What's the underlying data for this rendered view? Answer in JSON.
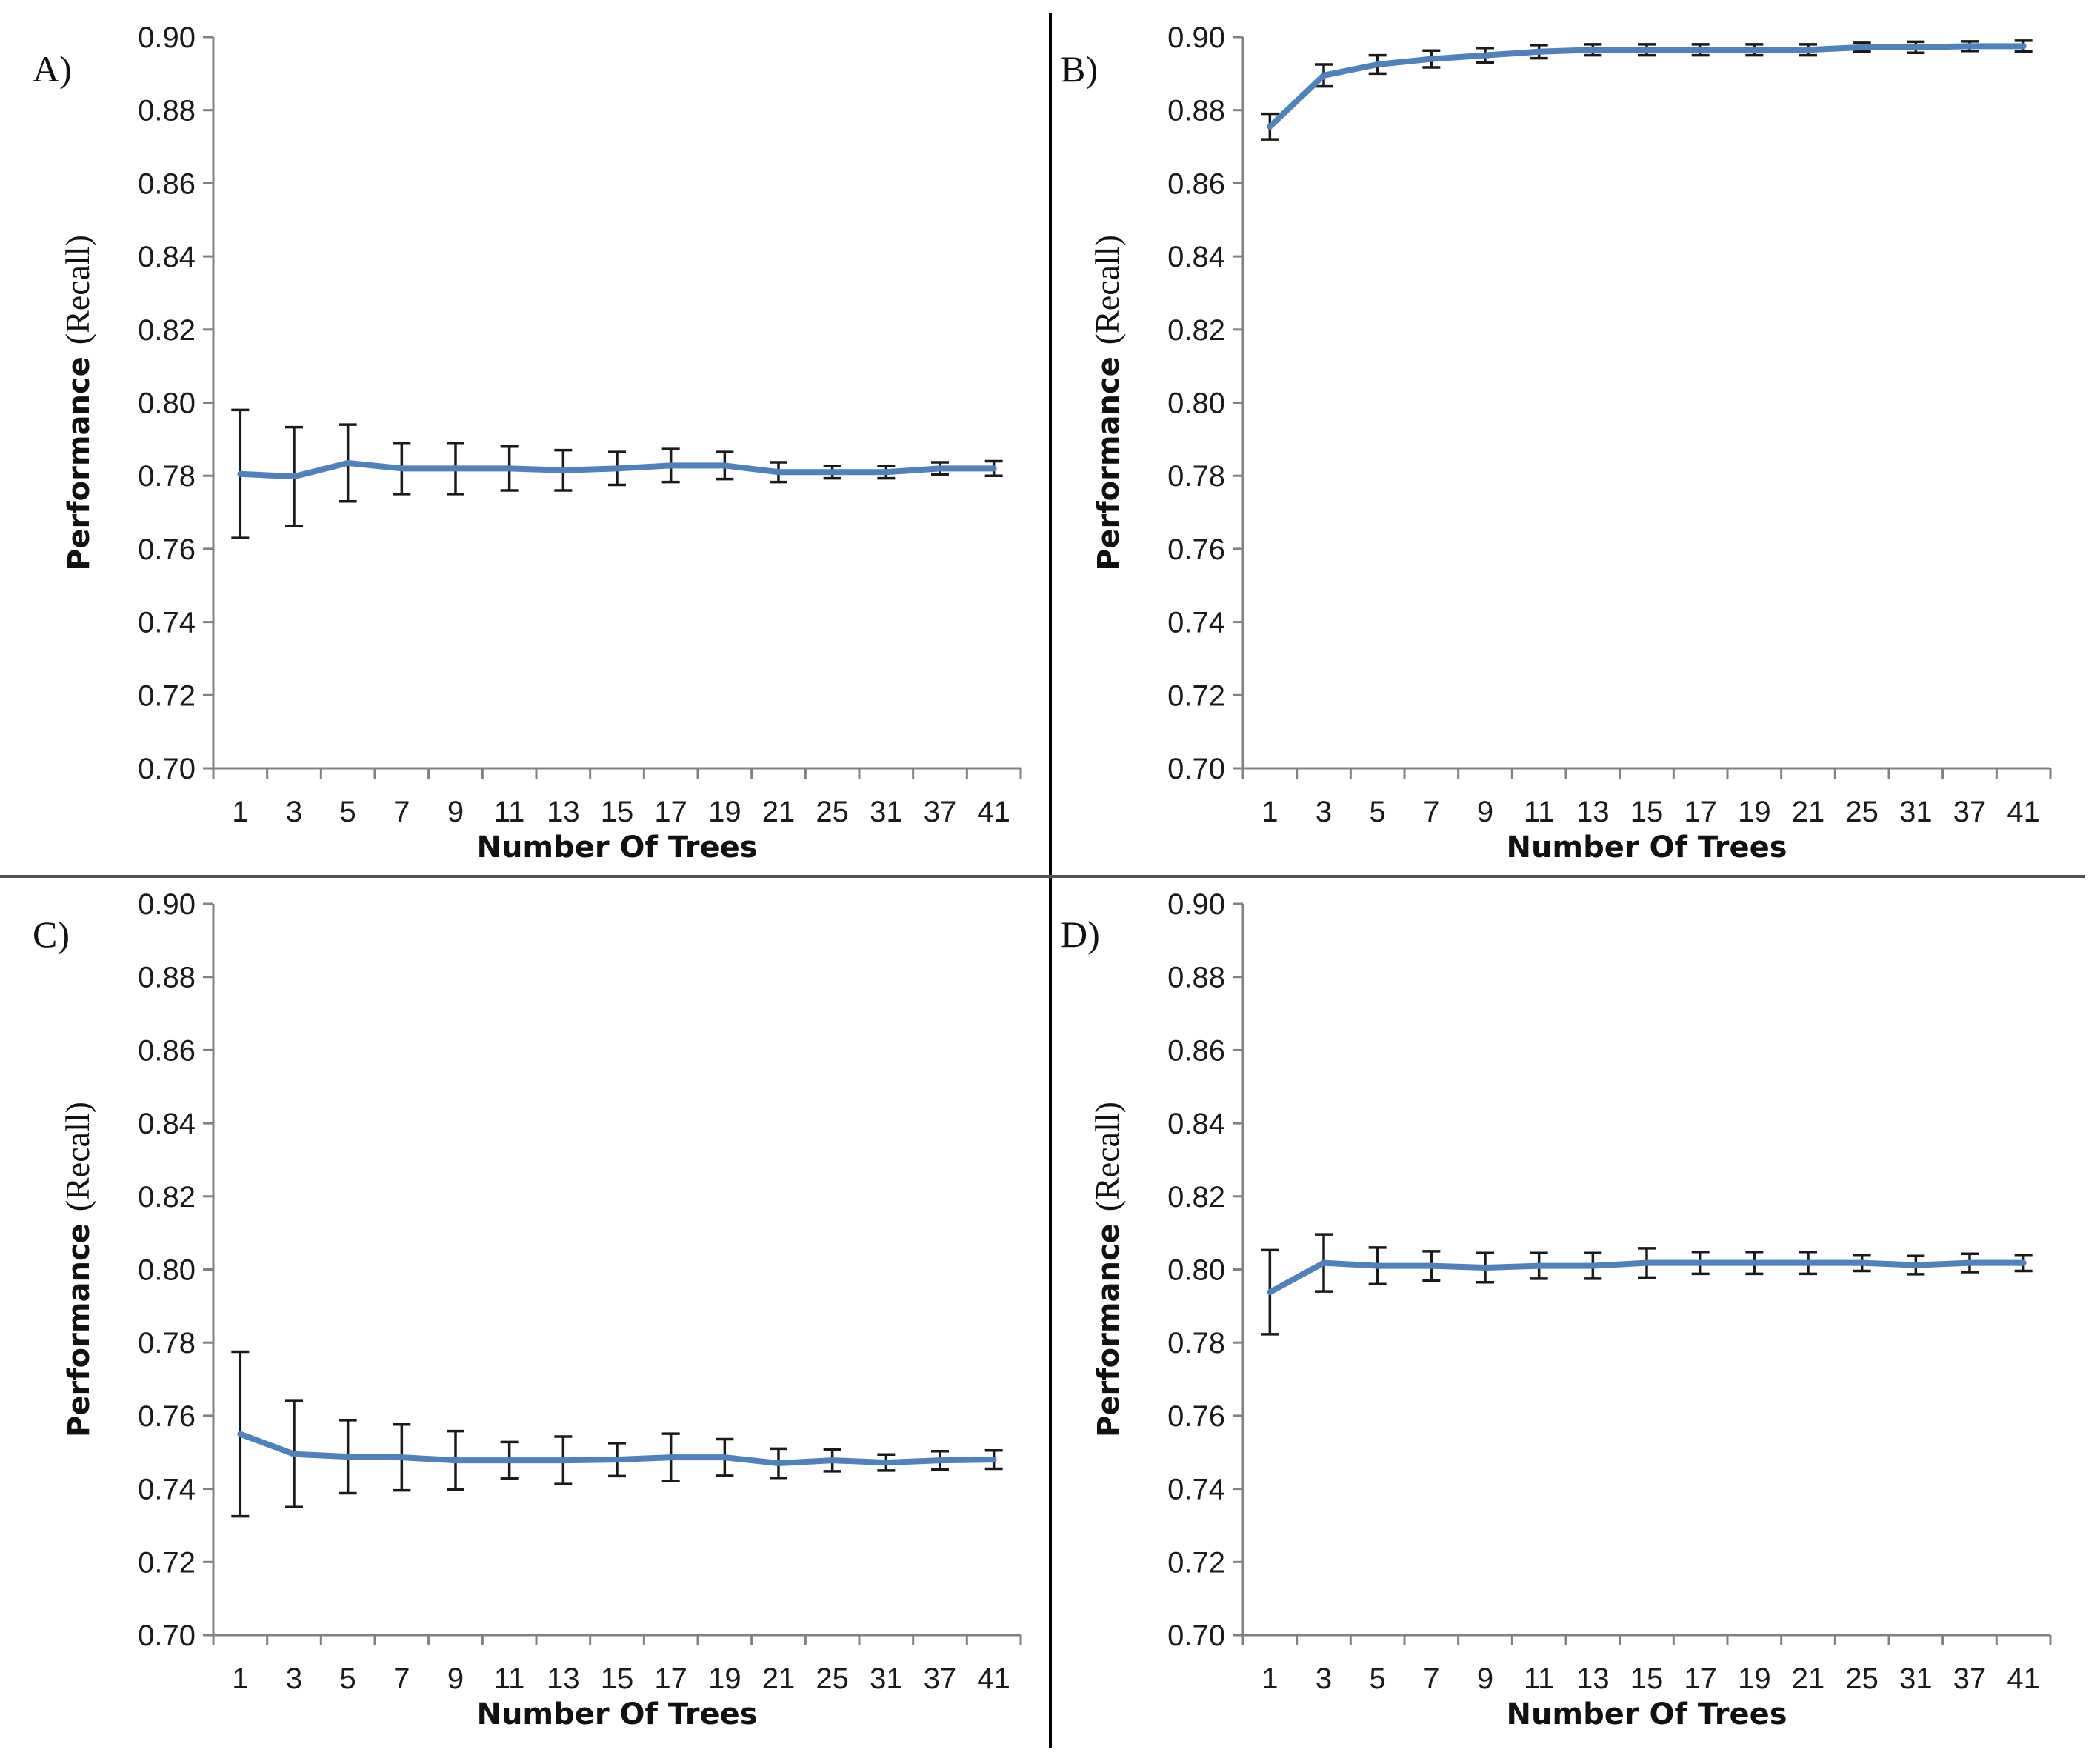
{
  "colors": {
    "line": "#4F81BD",
    "error_bar": "#1a1a1a",
    "axis": "#808080",
    "divider": "#000000"
  },
  "chart_data": [
    {
      "panel": "A)",
      "type": "line",
      "xlabel": "Number Of Trees",
      "ylabel": "Performance",
      "ylabel_suffix": "(Recall)",
      "ylim": [
        0.7,
        0.9
      ],
      "yticks": [
        "0.70",
        "0.72",
        "0.74",
        "0.76",
        "0.78",
        "0.80",
        "0.82",
        "0.84",
        "0.86",
        "0.88",
        "0.90"
      ],
      "categories": [
        "1",
        "3",
        "5",
        "7",
        "9",
        "11",
        "13",
        "15",
        "17",
        "19",
        "21",
        "25",
        "31",
        "37",
        "41"
      ],
      "values": [
        0.7805,
        0.7798,
        0.7835,
        0.782,
        0.782,
        0.782,
        0.7815,
        0.782,
        0.7828,
        0.7828,
        0.781,
        0.781,
        0.781,
        0.782,
        0.782
      ],
      "errors": [
        0.0175,
        0.0135,
        0.0105,
        0.007,
        0.007,
        0.006,
        0.0055,
        0.0045,
        0.0045,
        0.0037,
        0.0027,
        0.0017,
        0.0017,
        0.0017,
        0.002
      ]
    },
    {
      "panel": "B)",
      "type": "line",
      "xlabel": "Number Of Trees",
      "ylabel": "Performance",
      "ylabel_suffix": "(Recall)",
      "ylim": [
        0.7,
        0.9
      ],
      "yticks": [
        "0.70",
        "0.72",
        "0.74",
        "0.76",
        "0.78",
        "0.80",
        "0.82",
        "0.84",
        "0.86",
        "0.88",
        "0.90"
      ],
      "categories": [
        "1",
        "3",
        "5",
        "7",
        "9",
        "11",
        "13",
        "15",
        "17",
        "19",
        "21",
        "25",
        "31",
        "37",
        "41"
      ],
      "values": [
        0.8755,
        0.8895,
        0.8925,
        0.894,
        0.895,
        0.896,
        0.8965,
        0.8965,
        0.8965,
        0.8965,
        0.8965,
        0.8972,
        0.8972,
        0.8975,
        0.8975
      ],
      "errors": [
        0.0035,
        0.003,
        0.0025,
        0.0023,
        0.002,
        0.0018,
        0.0015,
        0.0015,
        0.0015,
        0.0015,
        0.0015,
        0.0012,
        0.0015,
        0.0013,
        0.0015
      ]
    },
    {
      "panel": "C)",
      "type": "line",
      "xlabel": "Number Of Trees",
      "ylabel": "Performance",
      "ylabel_suffix": "(Recall)",
      "ylim": [
        0.7,
        0.9
      ],
      "yticks": [
        "0.70",
        "0.72",
        "0.74",
        "0.76",
        "0.78",
        "0.80",
        "0.82",
        "0.84",
        "0.86",
        "0.88",
        "0.90"
      ],
      "categories": [
        "1",
        "3",
        "5",
        "7",
        "9",
        "11",
        "13",
        "15",
        "17",
        "19",
        "21",
        "25",
        "31",
        "37",
        "41"
      ],
      "values": [
        0.755,
        0.7495,
        0.7488,
        0.7486,
        0.7478,
        0.7478,
        0.7478,
        0.748,
        0.7486,
        0.7486,
        0.747,
        0.7478,
        0.7472,
        0.7478,
        0.748
      ],
      "errors": [
        0.0225,
        0.0145,
        0.01,
        0.009,
        0.008,
        0.005,
        0.0065,
        0.0045,
        0.0065,
        0.005,
        0.004,
        0.003,
        0.0022,
        0.0025,
        0.0025
      ]
    },
    {
      "panel": "D)",
      "type": "line",
      "xlabel": "Number Of Trees",
      "ylabel": "Performance",
      "ylabel_suffix": "(Recall)",
      "ylim": [
        0.7,
        0.9
      ],
      "yticks": [
        "0.70",
        "0.72",
        "0.74",
        "0.76",
        "0.78",
        "0.80",
        "0.82",
        "0.84",
        "0.86",
        "0.88",
        "0.90"
      ],
      "categories": [
        "1",
        "3",
        "5",
        "7",
        "9",
        "11",
        "13",
        "15",
        "17",
        "19",
        "21",
        "25",
        "31",
        "37",
        "41"
      ],
      "values": [
        0.7938,
        0.8018,
        0.801,
        0.801,
        0.8005,
        0.801,
        0.801,
        0.8018,
        0.8018,
        0.8018,
        0.8018,
        0.8018,
        0.8012,
        0.8018,
        0.8018
      ],
      "errors": [
        0.0115,
        0.0078,
        0.005,
        0.004,
        0.004,
        0.0035,
        0.0035,
        0.004,
        0.003,
        0.003,
        0.003,
        0.0022,
        0.0025,
        0.0025,
        0.0022
      ]
    }
  ]
}
